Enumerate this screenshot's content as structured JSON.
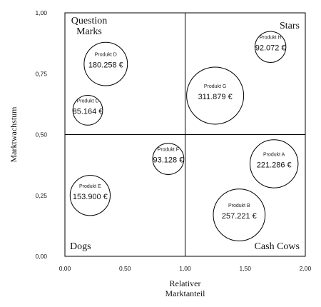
{
  "chart_data": {
    "type": "scatter",
    "subtype": "bubble",
    "xlabel": [
      "Relativer",
      "Marktanteil"
    ],
    "ylabel": "Marktwachstum",
    "xlim": [
      0,
      2
    ],
    "ylim": [
      0,
      1
    ],
    "x_ticks": [
      "0,00",
      "0,50",
      "1,00",
      "1,50",
      "2,00"
    ],
    "y_ticks": [
      "0,00",
      "0,25",
      "0,50",
      "0,75",
      "1,00"
    ],
    "x_tick_values": [
      0,
      0.5,
      1,
      1.5,
      2
    ],
    "y_tick_values": [
      0,
      0.25,
      0.5,
      0.75,
      1
    ],
    "quadrant_dividers": {
      "x": 1.0,
      "y": 0.5
    },
    "quadrants": [
      {
        "label": [
          "Question",
          "Marks"
        ],
        "position": "top-left"
      },
      {
        "label": [
          "Stars"
        ],
        "position": "top-right"
      },
      {
        "label": [
          "Dogs"
        ],
        "position": "bottom-left"
      },
      {
        "label": [
          "Cash Cows"
        ],
        "position": "bottom-right"
      }
    ],
    "points": [
      {
        "name": "Produkt A",
        "x": 1.74,
        "y": 0.38,
        "value": 221286,
        "label": "221.286 €"
      },
      {
        "name": "Produkt B",
        "x": 1.45,
        "y": 0.17,
        "value": 257221,
        "label": "257.221 €"
      },
      {
        "name": "Produkt C",
        "x": 0.19,
        "y": 0.6,
        "value": 85164,
        "label": "85.164 €"
      },
      {
        "name": "Produkt D",
        "x": 0.34,
        "y": 0.79,
        "value": 180258,
        "label": "180.258 €"
      },
      {
        "name": "Produkt E",
        "x": 0.21,
        "y": 0.25,
        "value": 153900,
        "label": "153.900 €"
      },
      {
        "name": "Produkt F",
        "x": 0.86,
        "y": 0.4,
        "value": 93128,
        "label": "93.128 €"
      },
      {
        "name": "Produkt G",
        "x": 1.25,
        "y": 0.66,
        "value": 311879,
        "label": "311.879 €"
      },
      {
        "name": "Produkt H",
        "x": 1.71,
        "y": 0.86,
        "value": 92072,
        "label": "92.072 €"
      }
    ],
    "grid": false
  }
}
